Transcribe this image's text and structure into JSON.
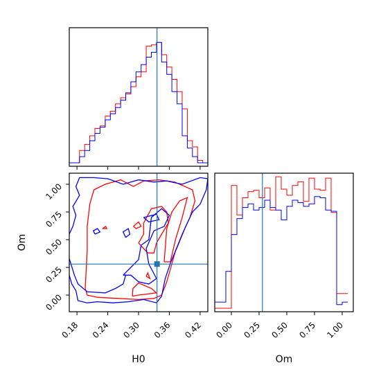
{
  "chart_data": {
    "type": "corner",
    "parameters": [
      "H0",
      "Om"
    ],
    "colors": {
      "series_a": "#ff0000",
      "series_b": "#0000ff",
      "truth": "#1f77b4"
    },
    "truth": {
      "H0": 0.336,
      "Om": 0.28
    },
    "axes": {
      "H0": {
        "xlabel": "H0",
        "range": [
          0.165,
          0.435
        ],
        "ticks": [
          0.18,
          0.24,
          0.3,
          0.36,
          0.42
        ],
        "tick_labels": [
          "0.18",
          "0.24",
          "0.30",
          "0.36",
          "0.42"
        ]
      },
      "Om": {
        "xlabel": "Om",
        "ylabel": "Om",
        "range": [
          -0.15,
          1.1
        ],
        "ticks": [
          0.0,
          0.25,
          0.5,
          0.75,
          1.0
        ],
        "tick_labels": [
          "0.00",
          "0.25",
          "0.50",
          "0.75",
          "1.00"
        ]
      }
    },
    "hist_H0": {
      "bin_edges": [
        0.165,
        0.175,
        0.185,
        0.195,
        0.205,
        0.215,
        0.225,
        0.235,
        0.245,
        0.255,
        0.265,
        0.275,
        0.285,
        0.295,
        0.305,
        0.315,
        0.325,
        0.335,
        0.345,
        0.355,
        0.365,
        0.375,
        0.385,
        0.395,
        0.405,
        0.415,
        0.425,
        0.435
      ],
      "series": [
        {
          "name": "",
          "color": "#ff0000",
          "values": [
            0.0,
            0.0,
            0.1,
            0.15,
            0.22,
            0.28,
            0.3,
            0.38,
            0.42,
            0.48,
            0.53,
            0.56,
            0.62,
            0.7,
            0.74,
            0.95,
            0.96,
            0.98,
            0.88,
            0.78,
            0.68,
            0.58,
            0.44,
            0.18,
            0.13,
            0.02,
            0.0
          ]
        },
        {
          "name": "",
          "color": "#0000ff",
          "values": [
            0.0,
            0.0,
            0.05,
            0.1,
            0.18,
            0.24,
            0.29,
            0.35,
            0.4,
            0.45,
            0.51,
            0.57,
            0.66,
            0.74,
            0.8,
            0.86,
            0.9,
            0.98,
            0.82,
            0.72,
            0.58,
            0.48,
            0.22,
            0.12,
            0.05,
            0.0,
            0.0
          ]
        }
      ]
    },
    "hist_Om": {
      "bin_edges": [
        -0.15,
        -0.1,
        -0.05,
        0.0,
        0.05,
        0.1,
        0.15,
        0.2,
        0.25,
        0.3,
        0.35,
        0.4,
        0.45,
        0.5,
        0.55,
        0.6,
        0.65,
        0.7,
        0.75,
        0.8,
        0.85,
        0.9,
        0.95,
        1.0,
        1.05
      ],
      "series": [
        {
          "name": "",
          "color": "#ff0000",
          "values": [
            0.0,
            0.0,
            0.0,
            1.0,
            0.76,
            0.9,
            0.95,
            0.96,
            0.9,
            0.98,
            0.8,
            1.07,
            0.97,
            0.92,
            1.0,
            1.03,
            0.87,
            1.06,
            0.97,
            0.96,
            1.06,
            0.78,
            0.12,
            0.12
          ]
        },
        {
          "name": "",
          "color": "#0000ff",
          "values": [
            0.05,
            0.05,
            0.3,
            0.6,
            0.73,
            0.82,
            0.85,
            0.8,
            0.82,
            0.88,
            0.82,
            0.8,
            0.72,
            0.83,
            0.88,
            0.86,
            0.83,
            0.85,
            0.91,
            0.9,
            0.8,
            0.79,
            0.03,
            0.05
          ]
        }
      ]
    },
    "contour_2d": {
      "x": "H0",
      "y": "Om",
      "series": [
        {
          "name": "",
          "color": "#ff0000",
          "lines": [
            [
              [
                0.196,
                0.06
              ],
              [
                0.2,
                0.4
              ],
              [
                0.2,
                0.62
              ],
              [
                0.205,
                0.82
              ],
              [
                0.213,
                0.95
              ],
              [
                0.235,
                1.0
              ],
              [
                0.265,
                1.04
              ],
              [
                0.29,
                0.98
              ],
              [
                0.31,
                1.03
              ],
              [
                0.34,
                1.04
              ],
              [
                0.37,
                1.02
              ],
              [
                0.39,
                0.98
              ],
              [
                0.405,
                0.95
              ],
              [
                0.41,
                0.85
              ],
              [
                0.4,
                0.7
              ],
              [
                0.385,
                0.55
              ],
              [
                0.372,
                0.4
              ],
              [
                0.363,
                0.25
              ],
              [
                0.355,
                0.12
              ],
              [
                0.345,
                0.0
              ],
              [
                0.33,
                -0.03
              ],
              [
                0.3,
                -0.04
              ],
              [
                0.26,
                -0.03
              ],
              [
                0.22,
                -0.02
              ],
              [
                0.2,
                0.0
              ],
              [
                0.196,
                0.06
              ]
            ],
            [
              [
                0.288,
                -0.01
              ],
              [
                0.289,
                0.06
              ],
              [
                0.3,
                0.11
              ],
              [
                0.325,
                0.06
              ],
              [
                0.335,
                0.02
              ],
              [
                0.3,
                0.0
              ],
              [
                0.288,
                -0.01
              ]
            ],
            [
              [
                0.315,
                0.17
              ],
              [
                0.318,
                0.2
              ],
              [
                0.322,
                0.15
              ],
              [
                0.315,
                0.17
              ]
            ],
            [
              [
                0.23,
                0.6
              ],
              [
                0.236,
                0.62
              ],
              [
                0.238,
                0.6
              ],
              [
                0.23,
                0.6
              ]
            ],
            [
              [
                0.3,
                0.47
              ],
              [
                0.31,
                0.55
              ],
              [
                0.31,
                0.65
              ],
              [
                0.325,
                0.78
              ],
              [
                0.345,
                0.8
              ],
              [
                0.355,
                0.75
              ],
              [
                0.358,
                0.65
              ],
              [
                0.345,
                0.55
              ],
              [
                0.335,
                0.47
              ],
              [
                0.33,
                0.38
              ],
              [
                0.318,
                0.38
              ],
              [
                0.3,
                0.47
              ]
            ],
            [
              [
                0.29,
                0.62
              ],
              [
                0.3,
                0.66
              ],
              [
                0.305,
                0.62
              ],
              [
                0.295,
                0.6
              ],
              [
                0.29,
                0.62
              ]
            ],
            [
              [
                0.35,
                0.3
              ],
              [
                0.355,
                0.6
              ],
              [
                0.365,
                0.75
              ],
              [
                0.38,
                0.85
              ],
              [
                0.395,
                0.88
              ],
              [
                0.385,
                0.7
              ],
              [
                0.372,
                0.5
              ],
              [
                0.362,
                0.3
              ],
              [
                0.35,
                0.3
              ]
            ]
          ]
        },
        {
          "name": "",
          "color": "#0000ff",
          "lines": [
            [
              [
                0.165,
                0.18
              ],
              [
                0.17,
                0.1
              ],
              [
                0.178,
                0.04
              ],
              [
                0.182,
                -0.05
              ],
              [
                0.2,
                -0.07
              ],
              [
                0.22,
                -0.06
              ],
              [
                0.25,
                -0.07
              ],
              [
                0.28,
                -0.06
              ],
              [
                0.31,
                -0.04
              ],
              [
                0.335,
                -0.07
              ],
              [
                0.345,
                -0.01
              ],
              [
                0.352,
                0.15
              ],
              [
                0.363,
                0.3
              ],
              [
                0.375,
                0.43
              ],
              [
                0.39,
                0.6
              ],
              [
                0.405,
                0.75
              ],
              [
                0.42,
                0.82
              ],
              [
                0.432,
                0.95
              ],
              [
                0.435,
                1.05
              ],
              [
                0.42,
                1.06
              ],
              [
                0.385,
                1.0
              ],
              [
                0.355,
                1.03
              ],
              [
                0.33,
                1.02
              ],
              [
                0.3,
                1.04
              ],
              [
                0.27,
                1.0
              ],
              [
                0.24,
                1.05
              ],
              [
                0.212,
                1.06
              ],
              [
                0.185,
                1.06
              ],
              [
                0.178,
                0.98
              ],
              [
                0.185,
                0.9
              ],
              [
                0.172,
                0.8
              ],
              [
                0.178,
                0.72
              ],
              [
                0.172,
                0.62
              ],
              [
                0.165,
                0.55
              ]
            ],
            [
              [
                0.165,
                0.33
              ],
              [
                0.175,
                0.18
              ],
              [
                0.182,
                0.1
              ],
              [
                0.2,
                0.03
              ],
              [
                0.235,
                0.02
              ],
              [
                0.255,
                0.06
              ],
              [
                0.27,
                0.1
              ],
              [
                0.275,
                0.18
              ]
            ],
            [
              [
                0.27,
                0.18
              ],
              [
                0.285,
                0.25
              ],
              [
                0.3,
                0.32
              ],
              [
                0.305,
                0.45
              ],
              [
                0.32,
                0.5
              ],
              [
                0.325,
                0.7
              ],
              [
                0.345,
                0.78
              ],
              [
                0.36,
                0.72
              ],
              [
                0.35,
                0.62
              ],
              [
                0.33,
                0.58
              ],
              [
                0.315,
                0.42
              ],
              [
                0.32,
                0.28
              ],
              [
                0.335,
                0.15
              ],
              [
                0.32,
                0.1
              ],
              [
                0.3,
                0.12
              ],
              [
                0.285,
                0.18
              ],
              [
                0.27,
                0.18
              ]
            ],
            [
              [
                0.275,
                0.52
              ],
              [
                0.283,
                0.55
              ],
              [
                0.28,
                0.6
              ],
              [
                0.27,
                0.57
              ],
              [
                0.275,
                0.52
              ]
            ],
            [
              [
                0.31,
                0.7
              ],
              [
                0.335,
                0.73
              ],
              [
                0.34,
                0.68
              ],
              [
                0.32,
                0.66
              ],
              [
                0.31,
                0.7
              ]
            ],
            [
              [
                0.215,
                0.55
              ],
              [
                0.225,
                0.57
              ],
              [
                0.22,
                0.6
              ],
              [
                0.212,
                0.58
              ],
              [
                0.215,
                0.55
              ]
            ]
          ]
        }
      ]
    }
  }
}
